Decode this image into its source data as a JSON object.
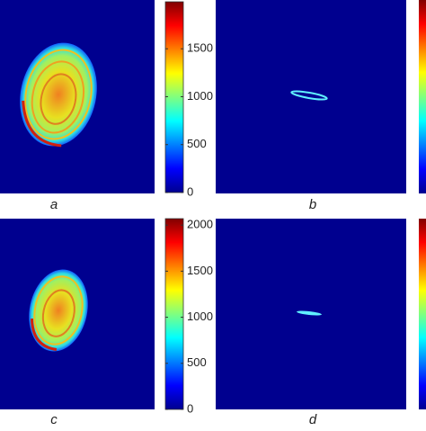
{
  "chart_data": [
    {
      "type": "heatmap",
      "label": "a",
      "ylim": [
        0,
        1990
      ],
      "yticks": [
        0,
        500,
        1000,
        1500
      ]
    },
    {
      "type": "heatmap",
      "label": "b"
    },
    {
      "type": "heatmap",
      "label": "c",
      "ylim": [
        0,
        2070
      ],
      "yticks": [
        0,
        500,
        1000,
        1500,
        2000
      ]
    },
    {
      "type": "heatmap",
      "label": "d"
    }
  ]
}
